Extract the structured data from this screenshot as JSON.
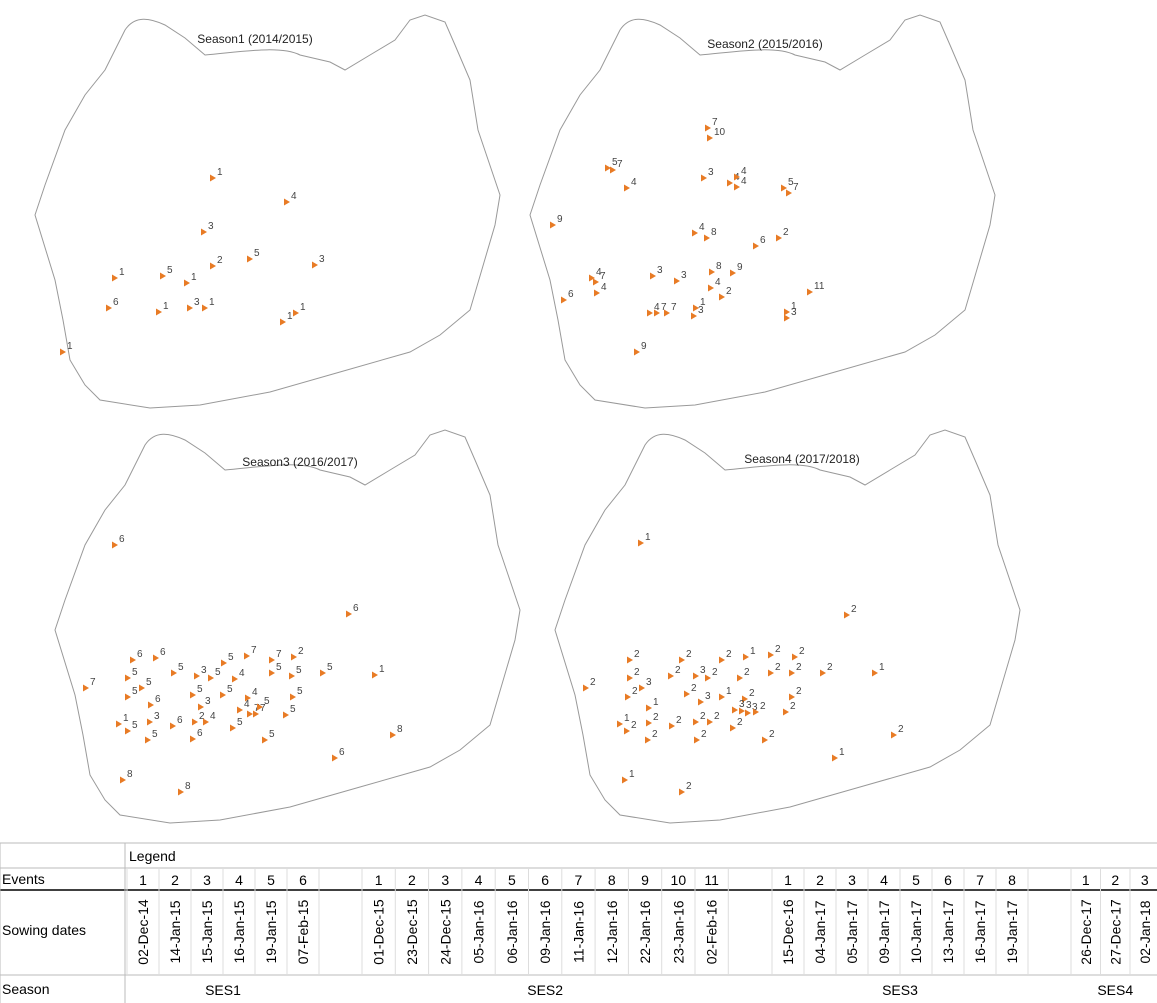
{
  "maps": [
    {
      "title": "Season1 (2014/2015)",
      "labels": [
        1,
        4,
        3,
        2,
        5,
        3,
        1,
        5,
        1,
        6,
        1,
        3,
        1,
        1,
        1,
        1
      ]
    },
    {
      "title": "Season2 (2015/2016)",
      "labels": [
        7,
        10,
        5,
        7,
        4,
        3,
        4,
        4,
        4,
        5,
        7,
        9,
        4,
        8,
        2,
        6,
        4,
        7,
        4,
        3,
        3,
        8,
        9,
        4,
        2,
        6,
        4,
        7,
        7,
        1,
        3,
        11,
        1,
        3,
        9
      ]
    },
    {
      "title": "Season3 (2016/2017)",
      "labels": [
        6,
        6,
        6,
        6,
        7,
        5,
        5,
        5,
        3,
        5,
        5,
        7,
        7,
        2,
        4,
        5,
        5,
        5,
        1,
        5,
        6,
        5,
        3,
        5,
        4,
        4,
        7,
        7,
        5,
        5,
        5,
        1,
        5,
        3,
        5,
        6,
        2,
        4,
        6,
        5,
        5,
        8,
        6,
        8,
        8
      ]
    },
    {
      "title": "Season4 (2017/2018)",
      "labels": [
        1,
        2,
        2,
        2,
        2,
        1,
        2,
        2,
        2,
        2,
        2,
        3,
        2,
        2,
        2,
        2,
        2,
        1,
        2,
        3,
        2,
        3,
        1,
        2,
        2,
        1,
        3,
        3,
        3,
        2,
        2,
        1,
        2,
        2,
        2,
        2,
        2,
        2,
        2,
        2,
        2,
        2,
        1,
        1,
        2
      ]
    }
  ],
  "table": {
    "legend": "Legend",
    "row_labels": [
      "Events",
      "Sowing dates",
      "Season"
    ],
    "groups": [
      {
        "season": "SES1",
        "events": [
          1,
          2,
          3,
          4,
          5,
          6
        ],
        "dates": [
          "02-Dec-14",
          "14-Jan-15",
          "15-Jan-15",
          "16-Jan-15",
          "19-Jan-15",
          "07-Feb-15"
        ]
      },
      {
        "season": "SES2",
        "events": [
          1,
          2,
          3,
          4,
          5,
          6,
          7,
          8,
          9,
          10,
          11
        ],
        "dates": [
          "01-Dec-15",
          "23-Dec-15",
          "24-Dec-15",
          "05-Jan-16",
          "06-Jan-16",
          "09-Jan-16",
          "11-Jan-16",
          "12-Jan-16",
          "22-Jan-16",
          "23-Jan-16",
          "02-Feb-16"
        ]
      },
      {
        "season": "SES3",
        "events": [
          1,
          2,
          3,
          4,
          5,
          6,
          7,
          8
        ],
        "dates": [
          "15-Dec-16",
          "04-Jan-17",
          "05-Jan-17",
          "09-Jan-17",
          "10-Jan-17",
          "13-Jan-17",
          "16-Jan-17",
          "19-Jan-17"
        ]
      },
      {
        "season": "SES4",
        "events": [
          1,
          2,
          3
        ],
        "dates": [
          "26-Dec-17",
          "27-Dec-17",
          "02-Jan-18"
        ]
      }
    ]
  }
}
